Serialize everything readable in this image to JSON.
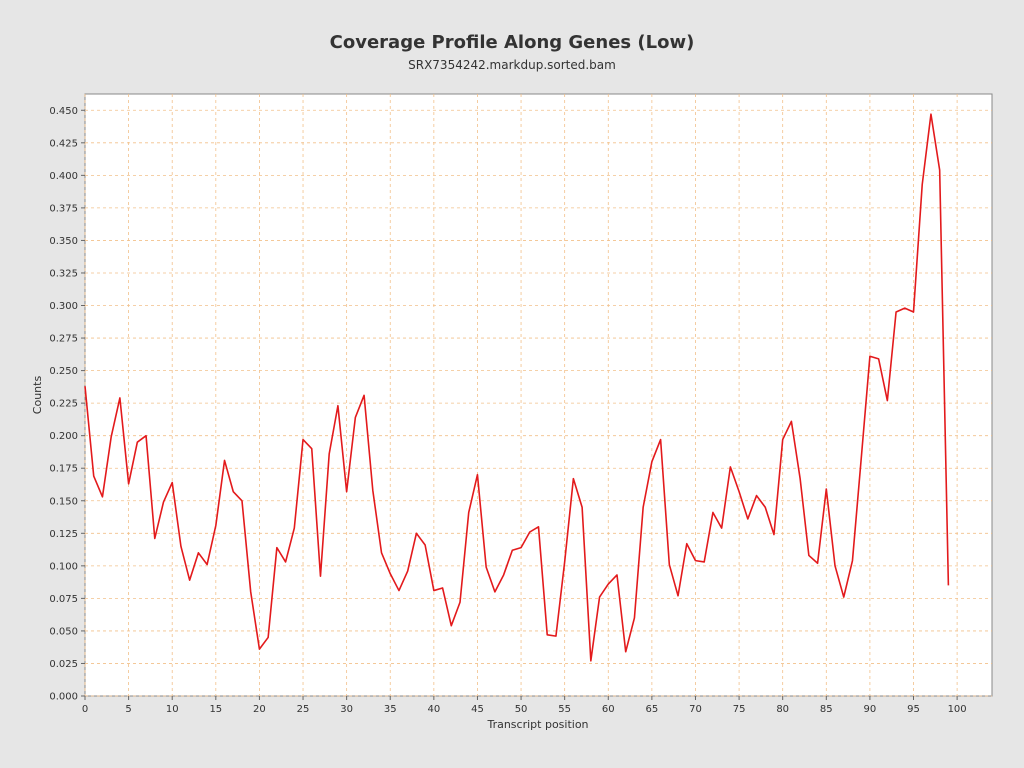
{
  "chart_data": {
    "type": "line",
    "title": "Coverage Profile Along Genes (Low)",
    "subtitle": "SRX7354242.markdup.sorted.bam",
    "xlabel": "Transcript position",
    "ylabel": "Counts",
    "xlim": [
      0,
      104
    ],
    "ylim": [
      0,
      0.4625
    ],
    "x_ticks": [
      0,
      5,
      10,
      15,
      20,
      25,
      30,
      35,
      40,
      45,
      50,
      55,
      60,
      65,
      70,
      75,
      80,
      85,
      90,
      95,
      100
    ],
    "y_ticks": [
      "0.000",
      "0.025",
      "0.050",
      "0.075",
      "0.100",
      "0.125",
      "0.150",
      "0.175",
      "0.200",
      "0.225",
      "0.250",
      "0.275",
      "0.300",
      "0.325",
      "0.350",
      "0.375",
      "0.400",
      "0.425",
      "0.450"
    ],
    "grid": true,
    "series": [
      {
        "color": "#e31a1c",
        "x": [
          0,
          1,
          2,
          3,
          4,
          5,
          6,
          7,
          8,
          9,
          10,
          11,
          12,
          13,
          14,
          15,
          16,
          17,
          18,
          19,
          20,
          21,
          22,
          23,
          24,
          25,
          26,
          27,
          28,
          29,
          30,
          31,
          32,
          33,
          34,
          35,
          36,
          37,
          38,
          39,
          40,
          41,
          42,
          43,
          44,
          45,
          46,
          47,
          48,
          49,
          50,
          51,
          52,
          53,
          54,
          55,
          56,
          57,
          58,
          59,
          60,
          61,
          62,
          63,
          64,
          65,
          66,
          67,
          68,
          69,
          70,
          71,
          72,
          73,
          74,
          75,
          76,
          77,
          78,
          79,
          80,
          81,
          82,
          83,
          84,
          85,
          86,
          87,
          88,
          89,
          90,
          91,
          92,
          93,
          94,
          95,
          96,
          97,
          98,
          99
        ],
        "values": [
          0.238,
          0.169,
          0.153,
          0.199,
          0.229,
          0.163,
          0.195,
          0.2,
          0.121,
          0.149,
          0.164,
          0.115,
          0.089,
          0.11,
          0.101,
          0.131,
          0.181,
          0.157,
          0.15,
          0.08,
          0.036,
          0.045,
          0.114,
          0.103,
          0.129,
          0.197,
          0.19,
          0.092,
          0.186,
          0.223,
          0.157,
          0.214,
          0.231,
          0.158,
          0.11,
          0.094,
          0.081,
          0.096,
          0.125,
          0.116,
          0.081,
          0.083,
          0.054,
          0.072,
          0.141,
          0.17,
          0.099,
          0.08,
          0.093,
          0.112,
          0.114,
          0.126,
          0.13,
          0.047,
          0.046,
          0.103,
          0.167,
          0.145,
          0.027,
          0.076,
          0.086,
          0.093,
          0.034,
          0.06,
          0.145,
          0.18,
          0.197,
          0.101,
          0.077,
          0.117,
          0.104,
          0.103,
          0.141,
          0.129,
          0.176,
          0.157,
          0.136,
          0.154,
          0.145,
          0.124,
          0.197,
          0.211,
          0.167,
          0.108,
          0.102,
          0.159,
          0.1,
          0.076,
          0.104,
          0.182,
          0.261,
          0.259,
          0.227,
          0.295,
          0.298,
          0.295,
          0.393,
          0.447,
          0.404,
          0.085
        ]
      }
    ]
  }
}
